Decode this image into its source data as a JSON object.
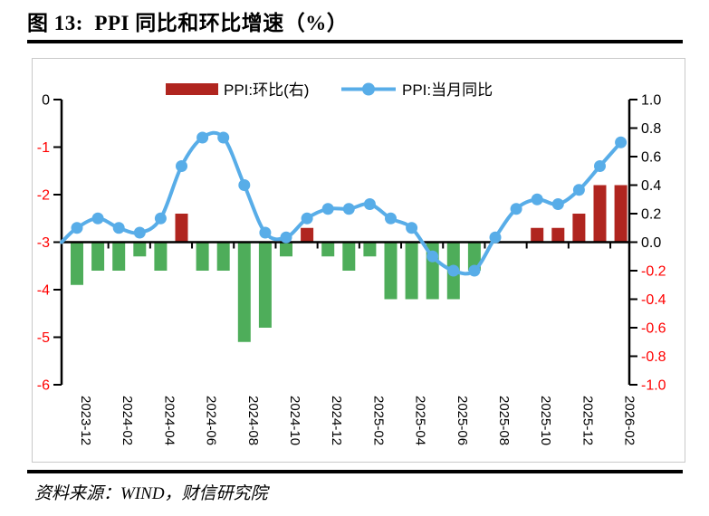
{
  "title": "图 13:  PPI 同比和环比增速（%）",
  "source_note": "资料来源：WIND，财信研究院",
  "colors": {
    "line_blue": "#58ade8",
    "bar_positive_red": "#b0251f",
    "bar_negative_green": "#4ead5a",
    "negative_tick_label": "#ff0000",
    "positive_tick_label": "#000000",
    "axis_black": "#000000",
    "frame_border": "#c9c9c9",
    "background": "#ffffff"
  },
  "chart_data": {
    "type": "bar",
    "subtype": "bar-line combo, dual axis, no gridlines, legend top center",
    "title": "PPI 同比和环比增速（%）",
    "categories": [
      "2023-12",
      "2024-01",
      "2024-02",
      "2024-03",
      "2024-04",
      "2024-05",
      "2024-06",
      "2024-07",
      "2024-08",
      "2024-09",
      "2024-10",
      "2024-11",
      "2024-12",
      "2025-01",
      "2025-02",
      "2025-03",
      "2025-04",
      "2025-05",
      "2025-06",
      "2025-07",
      "2025-08",
      "2025-09",
      "2025-10",
      "2025-11",
      "2025-12",
      "2026-01",
      "2026-02"
    ],
    "x_axis_tick_labels": [
      "2023-12",
      "2024-02",
      "2024-04",
      "2024-06",
      "2024-08",
      "2024-10",
      "2024-12",
      "2025-02",
      "2025-04",
      "2025-06",
      "2025-08",
      "2025-10",
      "2025-12",
      "2026-02"
    ],
    "left_axis": {
      "range": [
        -6,
        0
      ],
      "tick_labels": [
        "0",
        "-1",
        "-2",
        "-3",
        "-4",
        "-5",
        "-6"
      ]
    },
    "right_axis": {
      "range": [
        -1.0,
        1.0
      ],
      "tick_labels": [
        "1.0",
        "0.8",
        "0.6",
        "0.4",
        "0.2",
        "0.0",
        "-0.2",
        "-0.4",
        "-0.6",
        "-0.8",
        "-1.0"
      ]
    },
    "baseline_left_value": -3,
    "series": [
      {
        "name": "PPI:环比(右)",
        "type": "bar",
        "axis": "right",
        "values": [
          -0.3,
          -0.2,
          -0.2,
          -0.1,
          -0.2,
          0.2,
          -0.2,
          -0.2,
          -0.7,
          -0.6,
          -0.1,
          0.1,
          -0.1,
          -0.2,
          -0.1,
          -0.4,
          -0.4,
          -0.4,
          -0.4,
          -0.2,
          0.0,
          0.0,
          0.1,
          0.1,
          0.2,
          0.4,
          0.4
        ]
      },
      {
        "name": "PPI:当月同比",
        "type": "line",
        "axis": "left",
        "line_start_edge_value": -3.0,
        "values": [
          -2.7,
          -2.5,
          -2.7,
          -2.8,
          -2.5,
          -1.4,
          -0.8,
          -0.8,
          -1.8,
          -2.8,
          -2.9,
          -2.5,
          -2.3,
          -2.3,
          -2.2,
          -2.5,
          -2.7,
          -3.3,
          -3.6,
          -3.6,
          -2.9,
          -2.3,
          -2.1,
          -2.2,
          -1.9,
          -1.4,
          -0.9
        ]
      }
    ]
  }
}
